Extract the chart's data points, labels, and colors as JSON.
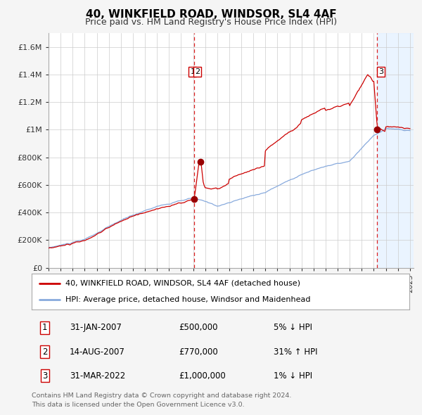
{
  "title": "40, WINKFIELD ROAD, WINDSOR, SL4 4AF",
  "subtitle": "Price paid vs. HM Land Registry's House Price Index (HPI)",
  "title_fontsize": 11,
  "subtitle_fontsize": 9,
  "x_start_year": 1995,
  "x_end_year": 2025,
  "ylim": [
    0,
    1700000
  ],
  "yticks": [
    0,
    200000,
    400000,
    600000,
    800000,
    1000000,
    1200000,
    1400000,
    1600000
  ],
  "ytick_labels": [
    "£0",
    "£200K",
    "£400K",
    "£600K",
    "£800K",
    "£1M",
    "£1.2M",
    "£1.4M",
    "£1.6M"
  ],
  "sale1_date": 2007.08,
  "sale1_price": 500000,
  "sale2_date": 2007.62,
  "sale2_price": 770000,
  "sale3_date": 2022.25,
  "sale3_price": 1000000,
  "red_line_color": "#cc0000",
  "blue_line_color": "#88aadd",
  "dot_color": "#990000",
  "vline_color": "#dd2222",
  "shade_color": "#ddeeff",
  "legend1": "40, WINKFIELD ROAD, WINDSOR, SL4 4AF (detached house)",
  "legend2": "HPI: Average price, detached house, Windsor and Maidenhead",
  "transaction1": [
    "1",
    "31-JAN-2007",
    "£500,000",
    "5% ↓ HPI"
  ],
  "transaction2": [
    "2",
    "14-AUG-2007",
    "£770,000",
    "31% ↑ HPI"
  ],
  "transaction3": [
    "3",
    "31-MAR-2022",
    "£1,000,000",
    "1% ↓ HPI"
  ],
  "footer1": "Contains HM Land Registry data © Crown copyright and database right 2024.",
  "footer2": "This data is licensed under the Open Government Licence v3.0.",
  "bg_color": "#f5f5f5",
  "plot_bg_color": "#ffffff"
}
